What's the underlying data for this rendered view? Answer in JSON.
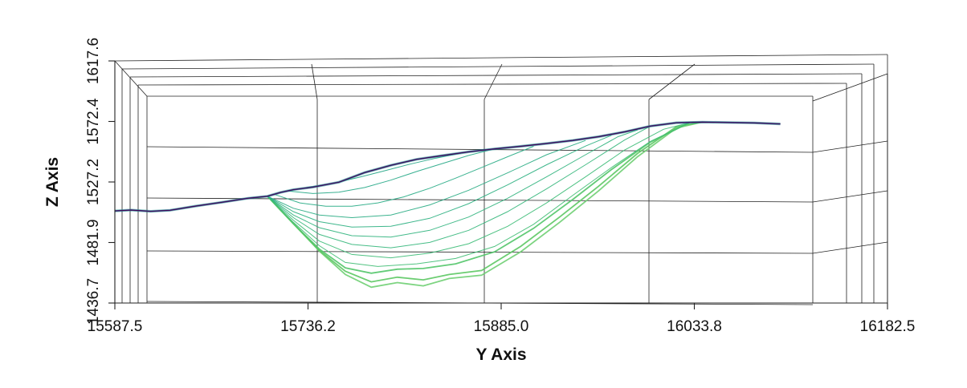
{
  "chart_data": {
    "type": "line",
    "title": "",
    "projection": "3d-orthographic-side-view",
    "xlabel": "Y Axis",
    "ylabel": "Z Axis",
    "xlim": [
      15587.5,
      16182.5
    ],
    "ylim": [
      1436.7,
      1617.6
    ],
    "x_ticks": [
      "15587.5",
      "15736.2",
      "15885.0",
      "16033.8",
      "16182.5"
    ],
    "y_ticks": [
      "1436.7",
      "1481.9",
      "1527.2",
      "1572.4",
      "1617.6"
    ],
    "grid": true,
    "colormap": [
      "#440154",
      "#3b528b",
      "#21918c",
      "#5ec962",
      "#a8db34",
      "#fde725"
    ],
    "terrain_profile": {
      "x": [
        15587.5,
        15600,
        15615,
        15630,
        15650,
        15670,
        15690,
        15705,
        15715,
        15725,
        15740,
        15760,
        15780,
        15800,
        15820,
        15840,
        15860,
        15880,
        15900,
        15920,
        15940,
        15960,
        15980,
        16000,
        16020,
        16040,
        16060,
        16080,
        16100
      ],
      "y": [
        1505.5,
        1506.2,
        1505.2,
        1506.0,
        1509.2,
        1512.0,
        1515.0,
        1516.5,
        1519.3,
        1521.4,
        1523.3,
        1527.0,
        1534.2,
        1539.6,
        1544.1,
        1546.9,
        1549.7,
        1551.9,
        1553.8,
        1555.9,
        1558.2,
        1561.0,
        1564.6,
        1568.9,
        1571.4,
        1571.9,
        1571.6,
        1571.3,
        1570.5
      ]
    },
    "deformation_series": [
      {
        "color": "#6fcf73",
        "x": [
          15705,
          15725,
          15745,
          15765,
          15785,
          15805,
          15825,
          15845,
          15870,
          15900,
          15930,
          15960,
          15990,
          16020,
          16040
        ],
        "y": [
          1516.5,
          1496.0,
          1475.5,
          1458.0,
          1448.5,
          1452.0,
          1449.5,
          1455.0,
          1457.5,
          1475.0,
          1497.0,
          1520.5,
          1546.0,
          1567.5,
          1571.9
        ]
      },
      {
        "color": "#5cc863",
        "x": [
          15705,
          15725,
          15745,
          15765,
          15785,
          15805,
          15825,
          15845,
          15870,
          15900,
          15930,
          15960,
          15990,
          16020,
          16040
        ],
        "y": [
          1516.5,
          1496.0,
          1476.0,
          1460.5,
          1452.5,
          1456.0,
          1454.0,
          1458.0,
          1461.0,
          1479.0,
          1501.0,
          1524.0,
          1548.5,
          1568.5,
          1571.9
        ]
      },
      {
        "color": "#52c569",
        "x": [
          15705,
          15725,
          15745,
          15765,
          15785,
          15805,
          15825,
          15850,
          15880,
          15910,
          15940,
          15970,
          16000,
          16030
        ],
        "y": [
          1516.5,
          1496.0,
          1477.0,
          1463.0,
          1459.0,
          1462.0,
          1462.5,
          1466.0,
          1475.0,
          1492.5,
          1514.0,
          1536.5,
          1557.0,
          1571.4
        ]
      },
      {
        "color": "#3fbc73",
        "x": [
          15705,
          15725,
          15745,
          15765,
          15790,
          15820,
          15850,
          15880,
          15910,
          15940,
          15970,
          16000,
          16030
        ],
        "y": [
          1516.5,
          1497.0,
          1479.5,
          1467.0,
          1464.0,
          1466.0,
          1470.0,
          1479.0,
          1495.5,
          1517.0,
          1538.0,
          1557.5,
          1571.4
        ]
      },
      {
        "color": "#3bbb75",
        "x": [
          15705,
          15725,
          15745,
          15770,
          15800,
          15830,
          15860,
          15890,
          15920,
          15950,
          15980,
          16010,
          16030
        ],
        "y": [
          1516.5,
          1498.5,
          1483.0,
          1473.0,
          1470.5,
          1474.0,
          1481.0,
          1494.0,
          1511.5,
          1531.0,
          1551.0,
          1566.5,
          1571.4
        ]
      },
      {
        "color": "#33b67a",
        "x": [
          15705,
          15725,
          15745,
          15770,
          15800,
          15830,
          15860,
          15890,
          15920,
          15950,
          15980,
          16000
        ],
        "y": [
          1516.5,
          1500.5,
          1488.0,
          1480.5,
          1478.0,
          1482.0,
          1491.0,
          1505.0,
          1522.0,
          1540.0,
          1558.5,
          1568.9
        ]
      },
      {
        "color": "#2eb37c",
        "x": [
          15705,
          15725,
          15745,
          15770,
          15800,
          15830,
          15860,
          15890,
          15920,
          15950,
          15975,
          15990
        ],
        "y": [
          1516.5,
          1502.5,
          1493.0,
          1487.0,
          1486.0,
          1491.0,
          1501.0,
          1515.0,
          1531.0,
          1547.5,
          1561.0,
          1566.0
        ]
      },
      {
        "color": "#2aaf7f",
        "x": [
          15705,
          15725,
          15745,
          15770,
          15800,
          15830,
          15860,
          15890,
          15920,
          15950,
          15970
        ],
        "y": [
          1516.5,
          1505.0,
          1497.5,
          1493.5,
          1494.0,
          1500.0,
          1511.0,
          1525.0,
          1540.0,
          1554.0,
          1562.0
        ]
      },
      {
        "color": "#27ab82",
        "x": [
          15705,
          15725,
          15745,
          15770,
          15800,
          15830,
          15860,
          15890,
          15920,
          15950
        ],
        "y": [
          1516.5,
          1507.5,
          1502.5,
          1500.5,
          1502.5,
          1510.0,
          1521.0,
          1534.0,
          1547.5,
          1558.2
        ]
      },
      {
        "color": "#24aa83",
        "x": [
          15710,
          15730,
          15750,
          15770,
          15790,
          15810,
          15830,
          15850,
          15870,
          15890,
          15910
        ],
        "y": [
          1518.0,
          1511.5,
          1509.0,
          1509.0,
          1511.5,
          1516.0,
          1522.5,
          1530.0,
          1538.0,
          1546.0,
          1553.8
        ]
      },
      {
        "color": "#22a785",
        "x": [
          15720,
          15740,
          15760,
          15780,
          15800,
          15820,
          15840,
          15860,
          15880
        ],
        "y": [
          1520.5,
          1518.5,
          1519.5,
          1523.0,
          1528.5,
          1535.0,
          1541.0,
          1547.0,
          1551.9
        ]
      },
      {
        "color": "#21a585",
        "x": [
          15735,
          15755,
          15775,
          15795,
          15815,
          15835,
          15855
        ],
        "y": [
          1523.0,
          1526.0,
          1530.5,
          1535.5,
          1540.5,
          1545.0,
          1548.9
        ]
      }
    ]
  }
}
